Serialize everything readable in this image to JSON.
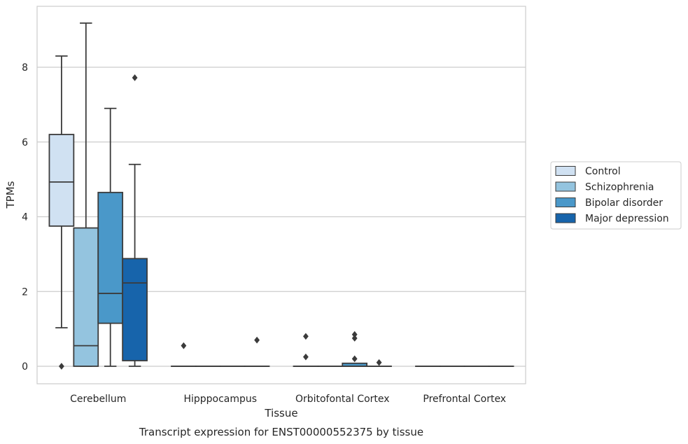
{
  "chart_data": {
    "type": "box",
    "xlabel": "Tissue",
    "ylabel": "TPMs",
    "caption": "Transcript expression for ENST00000552375 by tissue",
    "categories": [
      "Cerebellum",
      "Hipppocampus",
      "Orbitofontal Cortex",
      "Prefrontal Cortex"
    ],
    "ylim": [
      -0.4,
      9.7
    ],
    "yticks": [
      0,
      2,
      4,
      6,
      8
    ],
    "grid": "horizontal",
    "legend_position": "right",
    "series": [
      {
        "name": "Control",
        "color": "#d0e1f2",
        "boxes": [
          {
            "whislo": 1.03,
            "q1": 3.75,
            "med": 4.93,
            "q3": 6.2,
            "whishi": 8.3,
            "fliers": [
              0.0
            ]
          },
          {
            "whislo": 0,
            "q1": 0,
            "med": 0,
            "q3": 0,
            "whishi": 0,
            "fliers": [
              0.55
            ]
          },
          {
            "whislo": 0,
            "q1": 0,
            "med": 0,
            "q3": 0,
            "whishi": 0,
            "fliers": [
              0.8,
              0.25
            ]
          },
          {
            "whislo": 0,
            "q1": 0,
            "med": 0,
            "q3": 0,
            "whishi": 0,
            "fliers": []
          }
        ]
      },
      {
        "name": "Schizophrenia",
        "color": "#94c4df",
        "boxes": [
          {
            "whislo": 0.0,
            "q1": 0.0,
            "med": 0.55,
            "q3": 3.7,
            "whishi": 9.18,
            "fliers": []
          },
          {
            "whislo": 0,
            "q1": 0,
            "med": 0,
            "q3": 0,
            "whishi": 0,
            "fliers": []
          },
          {
            "whislo": 0,
            "q1": 0,
            "med": 0,
            "q3": 0,
            "whishi": 0,
            "fliers": []
          },
          {
            "whislo": 0,
            "q1": 0,
            "med": 0,
            "q3": 0,
            "whishi": 0,
            "fliers": []
          }
        ]
      },
      {
        "name": "Bipolar disorder",
        "color": "#4a98c9",
        "boxes": [
          {
            "whislo": 0.0,
            "q1": 1.15,
            "med": 1.95,
            "q3": 4.65,
            "whishi": 6.9,
            "fliers": []
          },
          {
            "whislo": 0,
            "q1": 0,
            "med": 0,
            "q3": 0,
            "whishi": 0,
            "fliers": []
          },
          {
            "whislo": 0,
            "q1": 0,
            "med": 0,
            "q3": 0.08,
            "whishi": 0.08,
            "fliers": [
              0.85,
              0.75,
              0.2
            ]
          },
          {
            "whislo": 0,
            "q1": 0,
            "med": 0,
            "q3": 0,
            "whishi": 0,
            "fliers": []
          }
        ]
      },
      {
        "name": "Major depression",
        "color": "#1764ab",
        "boxes": [
          {
            "whislo": 0.0,
            "q1": 0.15,
            "med": 2.23,
            "q3": 2.88,
            "whishi": 5.4,
            "fliers": [
              7.72
            ]
          },
          {
            "whislo": 0,
            "q1": 0,
            "med": 0,
            "q3": 0,
            "whishi": 0,
            "fliers": [
              0.7
            ]
          },
          {
            "whislo": 0,
            "q1": 0,
            "med": 0,
            "q3": 0,
            "whishi": 0,
            "fliers": [
              0.1
            ]
          },
          {
            "whislo": 0,
            "q1": 0,
            "med": 0,
            "q3": 0,
            "whishi": 0,
            "fliers": []
          }
        ]
      }
    ]
  }
}
